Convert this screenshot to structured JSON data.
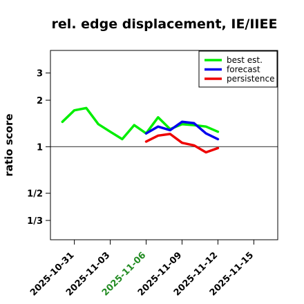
{
  "chart_data": {
    "type": "line",
    "title": "rel. edge displacement, IE/IIEE",
    "ylabel": "ratio score",
    "xlabel": "",
    "y_scale": "log",
    "y_ticks": [
      {
        "label": "1/3",
        "value": 0.3333
      },
      {
        "label": "1/2",
        "value": 0.5
      },
      {
        "label": "1",
        "value": 1
      },
      {
        "label": "2",
        "value": 2
      },
      {
        "label": "3",
        "value": 3
      }
    ],
    "ylim": [
      0.25,
      4.2
    ],
    "xlim": [
      "2025-10-29",
      "2025-11-17"
    ],
    "x_ticks": [
      {
        "label": "2025-10-31",
        "value": "2025-10-31",
        "color": "#000000"
      },
      {
        "label": "2025-11-03",
        "value": "2025-11-03",
        "color": "#000000"
      },
      {
        "label": "2025-11-06",
        "value": "2025-11-06",
        "color": "#228b22"
      },
      {
        "label": "2025-11-09",
        "value": "2025-11-09",
        "color": "#000000"
      },
      {
        "label": "2025-11-12",
        "value": "2025-11-12",
        "color": "#000000"
      },
      {
        "label": "2025-11-15",
        "value": "2025-11-15",
        "color": "#000000"
      }
    ],
    "reference_line": 1,
    "legend_position": "top-right",
    "series": [
      {
        "name": "best est.",
        "color": "#00ee00",
        "points": [
          {
            "x": "2025-10-30",
            "y": 1.45
          },
          {
            "x": "2025-10-31",
            "y": 1.72
          },
          {
            "x": "2025-11-01",
            "y": 1.78
          },
          {
            "x": "2025-11-02",
            "y": 1.4
          },
          {
            "x": "2025-11-03",
            "y": 1.25
          },
          {
            "x": "2025-11-04",
            "y": 1.12
          },
          {
            "x": "2025-11-05",
            "y": 1.38
          },
          {
            "x": "2025-11-06",
            "y": 1.22
          },
          {
            "x": "2025-11-07",
            "y": 1.55
          },
          {
            "x": "2025-11-08",
            "y": 1.3
          },
          {
            "x": "2025-11-09",
            "y": 1.4
          },
          {
            "x": "2025-11-10",
            "y": 1.38
          },
          {
            "x": "2025-11-11",
            "y": 1.35
          },
          {
            "x": "2025-11-12",
            "y": 1.25
          }
        ]
      },
      {
        "name": "forecast",
        "color": "#0000ee",
        "points": [
          {
            "x": "2025-11-06",
            "y": 1.22
          },
          {
            "x": "2025-11-07",
            "y": 1.35
          },
          {
            "x": "2025-11-08",
            "y": 1.28
          },
          {
            "x": "2025-11-09",
            "y": 1.45
          },
          {
            "x": "2025-11-10",
            "y": 1.42
          },
          {
            "x": "2025-11-11",
            "y": 1.22
          },
          {
            "x": "2025-11-12",
            "y": 1.12
          }
        ]
      },
      {
        "name": "persistence",
        "color": "#ee0000",
        "points": [
          {
            "x": "2025-11-06",
            "y": 1.08
          },
          {
            "x": "2025-11-07",
            "y": 1.18
          },
          {
            "x": "2025-11-08",
            "y": 1.21
          },
          {
            "x": "2025-11-09",
            "y": 1.06
          },
          {
            "x": "2025-11-10",
            "y": 1.02
          },
          {
            "x": "2025-11-11",
            "y": 0.92
          },
          {
            "x": "2025-11-12",
            "y": 0.98
          }
        ]
      }
    ]
  }
}
